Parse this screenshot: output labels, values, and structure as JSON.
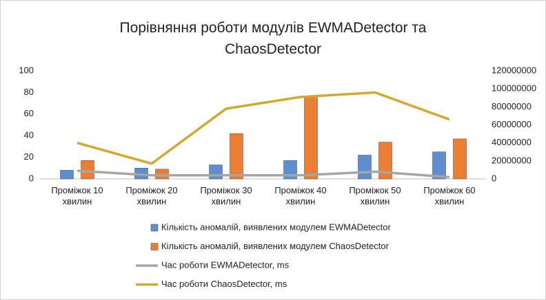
{
  "chart_data": {
    "type": "bar-line",
    "title": "Порівняння роботи модулів EWMADetector та ChaosDetector",
    "categories": [
      "Проміжок 10 хвилин",
      "Проміжок 20 хвилин",
      "Проміжок 30 хвилин",
      "Проміжок 40 хвилин",
      "Проміжок 50 хвилин",
      "Проміжок 60 хвилин"
    ],
    "series": [
      {
        "name": "Кількість аномалій, виявлених модулем EWMADetector",
        "type": "bar",
        "color": "#5b8fd0",
        "values": [
          8,
          10,
          13,
          17,
          22,
          25
        ]
      },
      {
        "name": "Кількість аномалій, виявлених модулем ChaosDetector",
        "type": "bar",
        "color": "#ed7d31",
        "values": [
          17,
          9,
          42,
          76,
          34,
          37
        ]
      },
      {
        "name": "Час роботи EWMADetector, ms",
        "type": "line",
        "axis": "y2",
        "color": "#a5a5a5",
        "values": [
          9000000,
          4000000,
          4000000,
          4000000,
          8000000,
          2000000
        ]
      },
      {
        "name": "Час роботи ChaosDetector, ms",
        "type": "line",
        "axis": "y2",
        "color": "#d4a82a",
        "values": [
          40000000,
          17000000,
          78000000,
          91000000,
          96000000,
          66000000
        ]
      }
    ],
    "ylim": [
      0,
      100
    ],
    "yticks": [
      0,
      20,
      40,
      60,
      80,
      100
    ],
    "y2lim": [
      0,
      120000000
    ],
    "y2ticks": [
      0,
      20000000,
      40000000,
      60000000,
      80000000,
      100000000,
      120000000
    ],
    "legend": "bottom"
  }
}
